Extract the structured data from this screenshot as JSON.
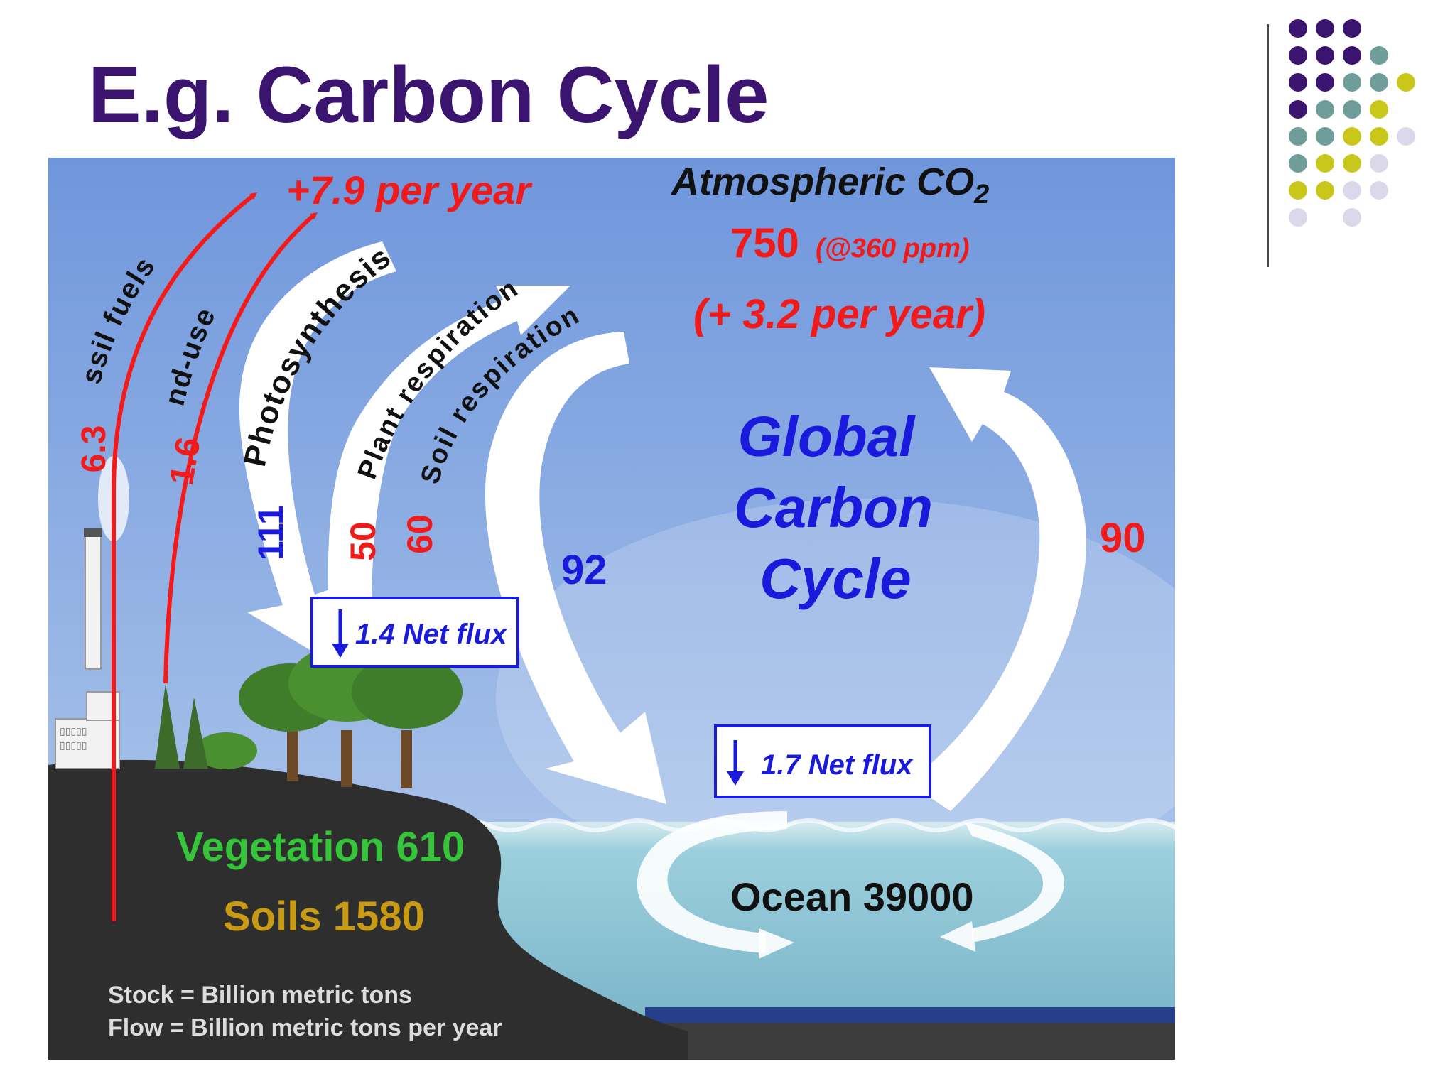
{
  "slide": {
    "title": "E.g. Carbon Cycle"
  },
  "decoration": {
    "dot_colors": {
      "purple": "#3b1470",
      "teal": "#6f9d9a",
      "olive": "#c9c81a",
      "lavender": "#dcd8ec"
    },
    "dot_rows": [
      [
        "purple",
        "purple",
        "purple"
      ],
      [
        "purple",
        "purple",
        "purple",
        "teal"
      ],
      [
        "purple",
        "purple",
        "teal",
        "teal",
        "olive"
      ],
      [
        "purple",
        "teal",
        "teal",
        "olive"
      ],
      [
        "teal",
        "teal",
        "olive",
        "olive",
        "lavender"
      ],
      [
        "teal",
        "olive",
        "olive",
        "lavender"
      ],
      [
        "olive",
        "olive",
        "lavender",
        "lavender"
      ],
      [
        "lavender",
        "",
        "lavender"
      ]
    ]
  },
  "diagram": {
    "colors": {
      "sky_top": "#6f96dc",
      "sky_bottom": "#b9d0ee",
      "land": "#2e2e2e",
      "ocean": "#8fc3d4",
      "ocean_floor": "#263f8a",
      "flow_arrow": "#ffffff",
      "human_arrow": "#f51a1a",
      "red_text": "#f01a1a",
      "blue_text": "#1a1adc",
      "green_text": "#35c43a",
      "gold_text": "#c99a14",
      "black_text": "#111111",
      "note_text": "#dcdcdc"
    },
    "atmosphere": {
      "label": "Atmospheric CO",
      "subscript": "2",
      "stock": "750",
      "concentration": "(@360 ppm)",
      "annual_change": "(+ 3.2 per year)"
    },
    "title_lines": [
      "Global",
      "Carbon",
      "Cycle"
    ],
    "human_emissions": {
      "total": "+7.9 per year",
      "fossil_label": "Fossil fuels",
      "fossil_value": "6.3",
      "landuse_label": "Land-use",
      "landuse_value": "1.6"
    },
    "land_fluxes": {
      "photosynthesis_label": "Photosynthesis",
      "photosynthesis_value": "111",
      "plant_respiration_label": "Plant respiration",
      "plant_respiration_value": "50",
      "soil_respiration_label": "Soil respiration",
      "soil_respiration_value": "60",
      "net_flux": "1.4 Net flux"
    },
    "ocean_fluxes": {
      "uptake_value": "92",
      "release_value": "90",
      "net_flux": "1.7 Net flux"
    },
    "stocks": {
      "vegetation": "Vegetation 610",
      "soils": "Soils 1580",
      "ocean": "Ocean 39000"
    },
    "notes": {
      "stock_unit": "Stock = Billion metric tons",
      "flow_unit": "Flow = Billion metric tons per year"
    }
  }
}
